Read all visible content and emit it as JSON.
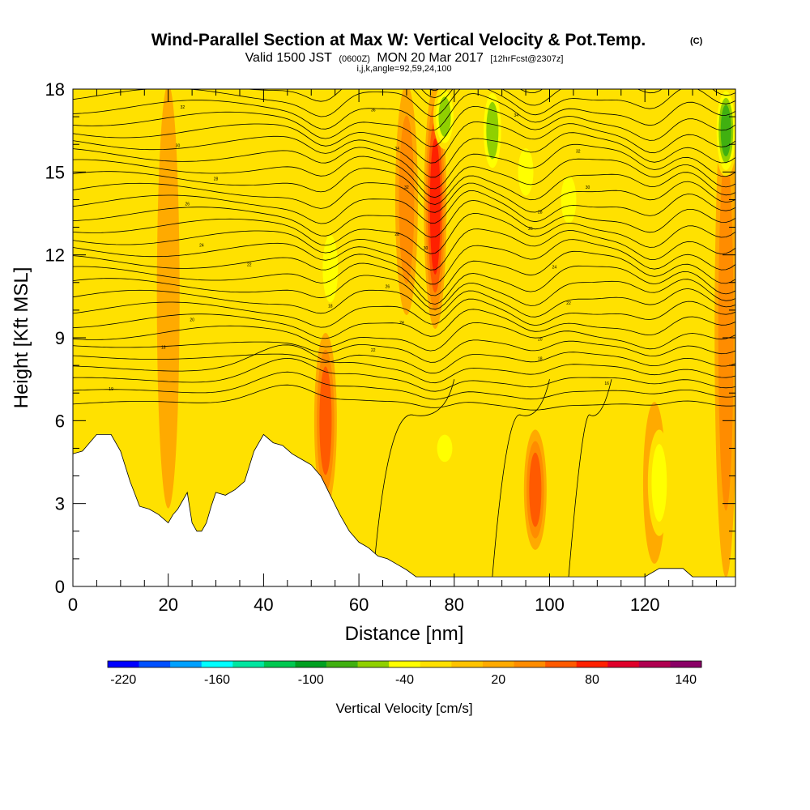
{
  "chart_data": {
    "type": "heatmap",
    "title": "Wind-Parallel Section at Max W: Vertical Velocity & Pot.Temp.",
    "title_mark": "(C)",
    "subtitle_parts": [
      "Valid 1500 JST",
      "(0600Z)",
      "MON 20 Mar 2017",
      "[12hrFcst@2307z]"
    ],
    "subtitle2": "i,j,k,angle=92,59,24,100",
    "xlabel": "Distance [nm]",
    "ylabel": "Height [Kft MSL]",
    "xlim": [
      0,
      139
    ],
    "ylim": [
      0,
      18
    ],
    "xticks": [
      "0",
      "20",
      "40",
      "60",
      "80",
      "100",
      "120"
    ],
    "yticks": [
      "0",
      "3",
      "6",
      "9",
      "12",
      "15",
      "18"
    ],
    "colorbar": {
      "label": "Vertical Velocity [cm/s]",
      "boundaries": [
        -230,
        -210,
        -190,
        -170,
        -150,
        -130,
        -110,
        -90,
        -70,
        -50,
        -30,
        -10,
        10,
        30,
        50,
        70,
        90,
        110,
        130,
        150
      ],
      "colors": [
        "#0000ff",
        "#0050ff",
        "#00a0ff",
        "#00ffff",
        "#00e6a0",
        "#00c850",
        "#00a020",
        "#40b010",
        "#90d000",
        "#ffff00",
        "#ffe100",
        "#ffc300",
        "#ffaa00",
        "#ff8c00",
        "#ff5a00",
        "#ff2000",
        "#e0002a",
        "#b00050",
        "#8a0066"
      ],
      "tick_labels": [
        "-220",
        "-160",
        "-100",
        "-40",
        "20",
        "80",
        "140"
      ]
    },
    "vertical_velocity_features": [
      {
        "kind": "updraft",
        "x": 76,
        "y_top": 18,
        "y_bottom": 9.5,
        "max": 95
      },
      {
        "kind": "updraft",
        "x": 53,
        "y_top": 9,
        "y_bottom": 3,
        "max": 75
      },
      {
        "kind": "updraft",
        "x": 97,
        "y_top": 5.5,
        "y_bottom": 1.5,
        "max": 75
      },
      {
        "kind": "updraft",
        "x": 70,
        "y_top": 18,
        "y_bottom": 10,
        "max": 55
      },
      {
        "kind": "updraft",
        "x": 122,
        "y_top": 6.5,
        "y_bottom": 1,
        "max": 35
      },
      {
        "kind": "updraft",
        "x": 137,
        "y_top": 18,
        "y_bottom": 0.5,
        "max": 55
      },
      {
        "kind": "updraft",
        "x": 20,
        "y_top": 18,
        "y_bottom": 3,
        "max": 30
      },
      {
        "kind": "downdraft",
        "x": 88,
        "y_top": 18,
        "y_bottom": 15,
        "min": -75
      },
      {
        "kind": "downdraft",
        "x": 137,
        "y_top": 18,
        "y_bottom": 15,
        "min": -80
      },
      {
        "kind": "downdraft",
        "x": 54,
        "y_top": 13,
        "y_bottom": 10,
        "min": -55
      },
      {
        "kind": "downdraft",
        "x": 78,
        "y_top": 18,
        "y_bottom": 16,
        "min": -60
      },
      {
        "kind": "downdraft",
        "x": 104,
        "y_top": 15,
        "y_bottom": 13,
        "min": -50
      },
      {
        "kind": "downdraft",
        "x": 123,
        "y_top": 5.5,
        "y_bottom": 2,
        "min": -55
      },
      {
        "kind": "downdraft",
        "x": 78,
        "y_top": 5.5,
        "y_bottom": 4.5,
        "min": -45
      },
      {
        "kind": "downdraft",
        "x": 95,
        "y_top": 16,
        "y_bottom": 14,
        "min": -45
      }
    ],
    "terrain": {
      "x": [
        0,
        2,
        5,
        8,
        10,
        12,
        14,
        16,
        18,
        20,
        21,
        22,
        24,
        25,
        26,
        27,
        28,
        29,
        30,
        32,
        34,
        36,
        38,
        40,
        42,
        44,
        46,
        48,
        50,
        52,
        54,
        56,
        58,
        60,
        62,
        64,
        66,
        68,
        70,
        72,
        74,
        76,
        80,
        85,
        90,
        95,
        100,
        105,
        110,
        115,
        120,
        123,
        128,
        130,
        135,
        139
      ],
      "y": [
        4.8,
        4.9,
        5.5,
        5.5,
        4.9,
        3.8,
        2.9,
        2.8,
        2.6,
        2.3,
        2.6,
        2.8,
        3.4,
        2.3,
        2.0,
        2.0,
        2.3,
        2.9,
        3.4,
        3.3,
        3.5,
        3.8,
        4.9,
        5.5,
        5.2,
        5.1,
        4.8,
        4.6,
        4.4,
        4.0,
        3.3,
        2.6,
        2.0,
        1.6,
        1.4,
        1.1,
        1.0,
        0.8,
        0.6,
        0.35,
        0.35,
        0.35,
        0.35,
        0.35,
        0.35,
        0.35,
        0.35,
        0.35,
        0.35,
        0.35,
        0.35,
        0.65,
        0.65,
        0.35,
        0.35,
        0.35
      ]
    },
    "potential_temperature_contours": [
      {
        "label": "19",
        "x": 8,
        "y": 7.1
      },
      {
        "label": "18",
        "x": 19,
        "y": 8.6
      },
      {
        "label": "20",
        "x": 25,
        "y": 9.6
      },
      {
        "label": "22",
        "x": 37,
        "y": 11.6
      },
      {
        "label": "24",
        "x": 27,
        "y": 12.3
      },
      {
        "label": "26",
        "x": 24,
        "y": 13.8
      },
      {
        "label": "28",
        "x": 30,
        "y": 14.7
      },
      {
        "label": "30",
        "x": 22,
        "y": 15.9
      },
      {
        "label": "32",
        "x": 23,
        "y": 17.3
      },
      {
        "label": "22",
        "x": 63,
        "y": 8.5
      },
      {
        "label": "24",
        "x": 69,
        "y": 9.5
      },
      {
        "label": "26",
        "x": 66,
        "y": 10.8
      },
      {
        "label": "28",
        "x": 68,
        "y": 12.7
      },
      {
        "label": "30",
        "x": 74,
        "y": 12.2
      },
      {
        "label": "32",
        "x": 70,
        "y": 14.4
      },
      {
        "label": "34",
        "x": 68,
        "y": 15.8
      },
      {
        "label": "36",
        "x": 63,
        "y": 17.2
      },
      {
        "label": "18",
        "x": 54,
        "y": 10.1
      },
      {
        "label": "20",
        "x": 98,
        "y": 8.9
      },
      {
        "label": "22",
        "x": 104,
        "y": 10.2
      },
      {
        "label": "24",
        "x": 101,
        "y": 11.5
      },
      {
        "label": "26",
        "x": 96,
        "y": 12.9
      },
      {
        "label": "28",
        "x": 98,
        "y": 13.5
      },
      {
        "label": "30",
        "x": 108,
        "y": 14.4
      },
      {
        "label": "32",
        "x": 106,
        "y": 15.7
      },
      {
        "label": "34",
        "x": 93,
        "y": 17.0
      },
      {
        "label": "16",
        "x": 112,
        "y": 7.3
      },
      {
        "label": "18",
        "x": 98,
        "y": 8.2
      }
    ]
  }
}
